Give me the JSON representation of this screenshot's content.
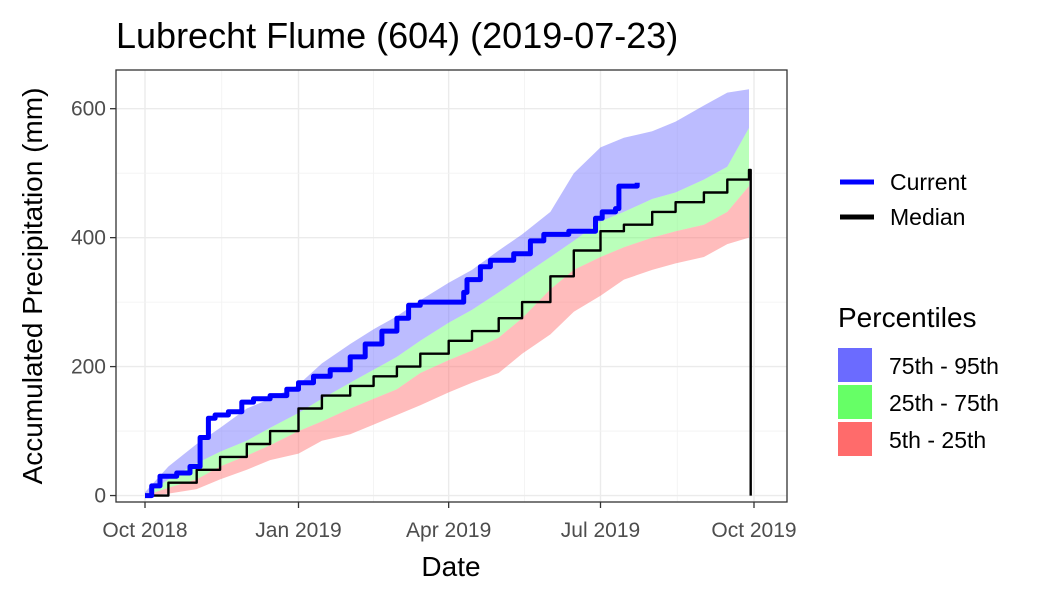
{
  "chart_data": {
    "type": "area",
    "title": "Lubrecht Flume (604) (2019-07-23)",
    "xlabel": "Date",
    "ylabel": "Accumulated Precipitation (mm)",
    "x_range": [
      "2018-10-01",
      "2019-10-01"
    ],
    "ylim": [
      -10,
      660
    ],
    "grid": true,
    "x_ticks": [
      {
        "date": "2018-10-01",
        "label": "Oct 2018"
      },
      {
        "date": "2019-01-01",
        "label": "Jan 2019"
      },
      {
        "date": "2019-04-01",
        "label": "Apr 2019"
      },
      {
        "date": "2019-07-01",
        "label": "Jul 2019"
      },
      {
        "date": "2019-10-01",
        "label": "Oct 2019"
      }
    ],
    "y_ticks": [
      0,
      200,
      400,
      600
    ],
    "legend_lines_placement": "right",
    "legend_lines": [
      {
        "label": "Current",
        "color": "#0000ff"
      },
      {
        "label": "Median",
        "color": "#000000"
      }
    ],
    "legend_bands_title": "Percentiles",
    "legend_bands": [
      {
        "label": "75th - 95th",
        "color": "#6b6bff"
      },
      {
        "label": "25th - 75th",
        "color": "#66ff66"
      },
      {
        "label": "5th - 25th",
        "color": "#ff6b6b"
      }
    ],
    "bands": [
      {
        "name": "75th - 95th",
        "color": "#6b6bff",
        "opacity": 0.45,
        "x": [
          "2018-10-01",
          "2018-10-15",
          "2018-11-01",
          "2018-11-15",
          "2018-12-01",
          "2018-12-15",
          "2019-01-01",
          "2019-01-15",
          "2019-02-01",
          "2019-02-15",
          "2019-03-01",
          "2019-03-15",
          "2019-04-01",
          "2019-04-15",
          "2019-05-01",
          "2019-05-15",
          "2019-06-01",
          "2019-06-15",
          "2019-07-01",
          "2019-07-15",
          "2019-08-01",
          "2019-08-15",
          "2019-09-01",
          "2019-09-15",
          "2019-09-28"
        ],
        "lower": [
          0,
          25,
          50,
          68,
          85,
          105,
          128,
          150,
          175,
          195,
          215,
          240,
          268,
          288,
          315,
          340,
          370,
          395,
          425,
          440,
          460,
          470,
          490,
          510,
          570
        ],
        "upper": [
          5,
          45,
          80,
          105,
          135,
          150,
          172,
          205,
          235,
          258,
          278,
          303,
          330,
          350,
          380,
          405,
          440,
          500,
          540,
          555,
          565,
          580,
          605,
          625,
          630
        ]
      },
      {
        "name": "25th - 75th",
        "color": "#66ff66",
        "opacity": 0.45,
        "x": [
          "2018-10-01",
          "2018-10-15",
          "2018-11-01",
          "2018-11-15",
          "2018-12-01",
          "2018-12-15",
          "2019-01-01",
          "2019-01-15",
          "2019-02-01",
          "2019-02-15",
          "2019-03-01",
          "2019-03-15",
          "2019-04-01",
          "2019-04-15",
          "2019-05-01",
          "2019-05-15",
          "2019-06-01",
          "2019-06-15",
          "2019-07-01",
          "2019-07-15",
          "2019-08-01",
          "2019-08-15",
          "2019-09-01",
          "2019-09-15",
          "2019-09-28"
        ],
        "lower": [
          0,
          12,
          25,
          45,
          62,
          78,
          100,
          115,
          135,
          150,
          165,
          190,
          210,
          225,
          245,
          275,
          320,
          350,
          370,
          385,
          400,
          410,
          420,
          440,
          480
        ],
        "upper": [
          0,
          25,
          50,
          68,
          85,
          105,
          128,
          150,
          175,
          195,
          215,
          240,
          268,
          288,
          315,
          340,
          370,
          395,
          425,
          440,
          460,
          470,
          490,
          510,
          570
        ]
      },
      {
        "name": "5th - 25th",
        "color": "#ff6b6b",
        "opacity": 0.45,
        "x": [
          "2018-10-01",
          "2018-10-15",
          "2018-11-01",
          "2018-11-15",
          "2018-12-01",
          "2018-12-15",
          "2019-01-01",
          "2019-01-15",
          "2019-02-01",
          "2019-02-15",
          "2019-03-01",
          "2019-03-15",
          "2019-04-01",
          "2019-04-15",
          "2019-05-01",
          "2019-05-15",
          "2019-06-01",
          "2019-06-15",
          "2019-07-01",
          "2019-07-15",
          "2019-08-01",
          "2019-08-15",
          "2019-09-01",
          "2019-09-15",
          "2019-09-28"
        ],
        "lower": [
          0,
          3,
          10,
          25,
          40,
          55,
          65,
          85,
          95,
          110,
          125,
          140,
          160,
          175,
          190,
          220,
          250,
          285,
          310,
          335,
          350,
          360,
          370,
          390,
          400
        ],
        "upper": [
          0,
          12,
          25,
          45,
          62,
          78,
          100,
          115,
          135,
          150,
          165,
          190,
          210,
          225,
          245,
          275,
          320,
          350,
          370,
          385,
          400,
          410,
          420,
          440,
          480
        ]
      }
    ],
    "series": [
      {
        "name": "Current",
        "color": "#0000ff",
        "x": [
          "2018-10-01",
          "2018-10-05",
          "2018-10-10",
          "2018-10-20",
          "2018-10-28",
          "2018-11-03",
          "2018-11-08",
          "2018-11-12",
          "2018-11-20",
          "2018-11-28",
          "2018-12-05",
          "2018-12-15",
          "2018-12-25",
          "2019-01-01",
          "2019-01-10",
          "2019-01-20",
          "2019-02-01",
          "2019-02-10",
          "2019-02-20",
          "2019-03-01",
          "2019-03-08",
          "2019-03-15",
          "2019-03-25",
          "2019-04-05",
          "2019-04-10",
          "2019-04-12",
          "2019-04-20",
          "2019-04-26",
          "2019-05-05",
          "2019-05-10",
          "2019-05-20",
          "2019-05-28",
          "2019-06-05",
          "2019-06-12",
          "2019-06-25",
          "2019-06-28",
          "2019-07-02",
          "2019-07-10",
          "2019-07-12",
          "2019-07-23"
        ],
        "y": [
          0,
          15,
          30,
          35,
          45,
          90,
          120,
          125,
          130,
          145,
          150,
          155,
          165,
          175,
          185,
          195,
          215,
          235,
          255,
          275,
          295,
          300,
          300,
          300,
          315,
          335,
          355,
          365,
          365,
          375,
          395,
          405,
          405,
          410,
          410,
          430,
          440,
          445,
          480,
          485
        ]
      },
      {
        "name": "Median",
        "color": "#000000",
        "x": [
          "2018-10-01",
          "2018-10-15",
          "2018-11-01",
          "2018-11-15",
          "2018-12-01",
          "2018-12-15",
          "2019-01-01",
          "2019-01-15",
          "2019-02-01",
          "2019-02-15",
          "2019-03-01",
          "2019-03-15",
          "2019-04-01",
          "2019-04-15",
          "2019-05-01",
          "2019-05-15",
          "2019-06-01",
          "2019-06-15",
          "2019-07-01",
          "2019-07-15",
          "2019-08-01",
          "2019-08-15",
          "2019-09-01",
          "2019-09-15",
          "2019-09-28",
          "2019-09-29"
        ],
        "y": [
          0,
          20,
          40,
          60,
          80,
          100,
          135,
          155,
          170,
          185,
          200,
          220,
          240,
          255,
          275,
          300,
          340,
          380,
          410,
          420,
          440,
          455,
          470,
          490,
          505,
          0
        ]
      }
    ]
  }
}
